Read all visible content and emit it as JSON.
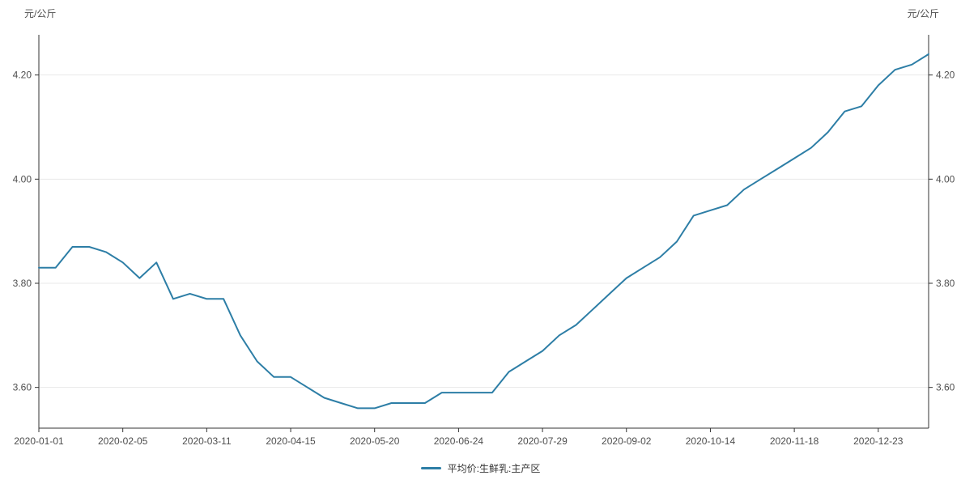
{
  "chart": {
    "y_axis_name_left": "元/公斤",
    "y_axis_name_right": "元/公斤",
    "legend": {
      "label": "平均价:生鲜乳:主产区"
    },
    "colors": {
      "line": "#2d7ea6",
      "axis": "#333333",
      "grid": "#e8e8e8",
      "tick_label": "#4e4e4e",
      "legend_text": "#333333",
      "background": "#ffffff"
    }
  },
  "chart_data": {
    "type": "line",
    "title": "",
    "ylabel": "元/公斤",
    "legend_position": "bottom",
    "grid": true,
    "series_name": "平均价:生鲜乳:主产区",
    "x": [
      "2020-01-01",
      "2020-01-08",
      "2020-01-15",
      "2020-01-22",
      "2020-01-29",
      "2020-02-05",
      "2020-02-12",
      "2020-02-19",
      "2020-02-26",
      "2020-03-04",
      "2020-03-11",
      "2020-03-18",
      "2020-03-25",
      "2020-04-01",
      "2020-04-08",
      "2020-04-15",
      "2020-04-22",
      "2020-04-29",
      "2020-05-06",
      "2020-05-13",
      "2020-05-20",
      "2020-05-27",
      "2020-06-03",
      "2020-06-10",
      "2020-06-17",
      "2020-06-24",
      "2020-07-01",
      "2020-07-08",
      "2020-07-15",
      "2020-07-22",
      "2020-07-29",
      "2020-08-05",
      "2020-08-12",
      "2020-08-19",
      "2020-08-26",
      "2020-09-02",
      "2020-09-09",
      "2020-09-16",
      "2020-09-23",
      "2020-09-30",
      "2020-10-14",
      "2020-10-21",
      "2020-10-28",
      "2020-11-04",
      "2020-11-11",
      "2020-11-18",
      "2020-11-25",
      "2020-12-02",
      "2020-12-09",
      "2020-12-16",
      "2020-12-23",
      "2020-12-30",
      "2021-01-06",
      "2021-01-13"
    ],
    "values": [
      3.83,
      3.83,
      3.87,
      3.87,
      3.86,
      3.84,
      3.81,
      3.84,
      3.77,
      3.78,
      3.77,
      3.77,
      3.7,
      3.65,
      3.62,
      3.62,
      3.6,
      3.58,
      3.57,
      3.56,
      3.56,
      3.57,
      3.57,
      3.57,
      3.59,
      3.59,
      3.59,
      3.59,
      3.63,
      3.65,
      3.67,
      3.7,
      3.72,
      3.75,
      3.78,
      3.81,
      3.83,
      3.85,
      3.88,
      3.93,
      3.94,
      3.95,
      3.98,
      4.0,
      4.02,
      4.04,
      4.06,
      4.09,
      4.13,
      4.14,
      4.18,
      4.21,
      4.22,
      4.24
    ],
    "y_ticks": [
      3.6,
      3.8,
      4.0,
      4.2
    ],
    "y_tick_labels": [
      "3.60",
      "3.80",
      "4.00",
      "4.20"
    ],
    "x_tick_indices": [
      0,
      5,
      10,
      15,
      20,
      25,
      30,
      35,
      40,
      45,
      50
    ],
    "x_tick_labels": [
      "2020-01-01",
      "2020-02-05",
      "2020-03-11",
      "2020-04-15",
      "2020-05-20",
      "2020-06-24",
      "2020-07-29",
      "2020-09-02",
      "2020-10-14",
      "2020-11-18",
      "2020-12-23"
    ],
    "ylim": [
      3.52,
      4.28
    ]
  }
}
